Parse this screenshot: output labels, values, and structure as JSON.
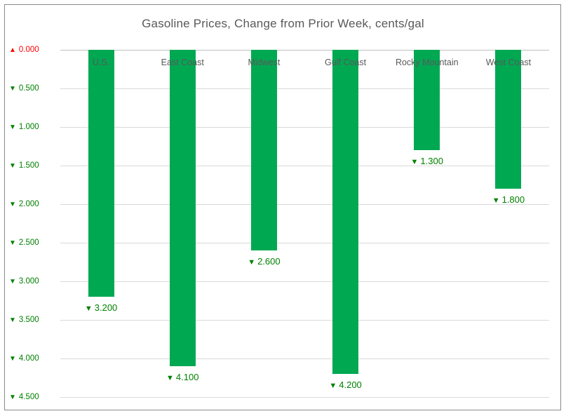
{
  "chart_data": {
    "type": "bar",
    "title": "Gasoline Prices, Change from Prior Week, cents/gal",
    "categories": [
      "U.S.",
      "East Coast",
      "Midwest",
      "Gulf Coast",
      "Rocky Mountain",
      "West Coast"
    ],
    "series": [
      {
        "name": "Change from Prior Week (cents/gal)",
        "values": [
          -3.2,
          -4.1,
          -2.6,
          -4.2,
          -1.3,
          -1.8
        ],
        "value_labels": [
          "3.200",
          "4.100",
          "2.600",
          "4.200",
          "1.300",
          "1.800"
        ],
        "directions": [
          "down",
          "down",
          "down",
          "down",
          "down",
          "down"
        ]
      }
    ],
    "xlabel": "",
    "ylabel": "",
    "y_axis": {
      "orientation": "declines-downward",
      "range": [
        0,
        4.5
      ],
      "tick_step": 0.5,
      "ticks": [
        {
          "value": 0.0,
          "label": "0.000",
          "direction": "up"
        },
        {
          "value": 0.5,
          "label": "0.500",
          "direction": "down"
        },
        {
          "value": 1.0,
          "label": "1.000",
          "direction": "down"
        },
        {
          "value": 1.5,
          "label": "1.500",
          "direction": "down"
        },
        {
          "value": 2.0,
          "label": "2.000",
          "direction": "down"
        },
        {
          "value": 2.5,
          "label": "2.500",
          "direction": "down"
        },
        {
          "value": 3.0,
          "label": "3.000",
          "direction": "down"
        },
        {
          "value": 3.5,
          "label": "3.500",
          "direction": "down"
        },
        {
          "value": 4.0,
          "label": "4.000",
          "direction": "down"
        },
        {
          "value": 4.5,
          "label": "4.500",
          "direction": "down"
        }
      ]
    },
    "legend": "none",
    "grid": true,
    "glyphs": {
      "up_triangle": "▲",
      "down_triangle": "▼"
    },
    "colors": {
      "bar": "#00A852",
      "decline_label": "#008000",
      "increase_label": "#FF0000",
      "title": "#595959",
      "category_label": "#595959",
      "gridline": "#D9D9D9",
      "zero_line": "#BFBFBF",
      "border": "#8A8A8A",
      "background": "#FFFFFF"
    }
  }
}
